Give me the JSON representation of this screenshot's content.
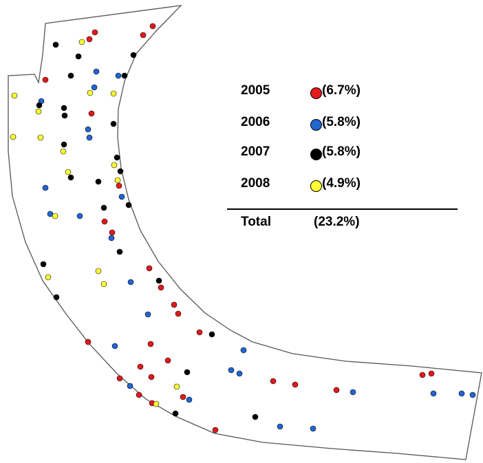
{
  "map": {
    "series": [
      {
        "year": "2005",
        "percent": "(6.7%)",
        "color": "#e41a1c"
      },
      {
        "year": "2006",
        "percent": "(5.8%)",
        "color": "#2166d1"
      },
      {
        "year": "2007",
        "percent": "(5.8%)",
        "color": "#000000"
      },
      {
        "year": "2008",
        "percent": "(4.9%)",
        "color": "#ffff33"
      }
    ],
    "total_label": "Total",
    "total_value": "(23.2%)",
    "boundary_color": "#555555"
  }
}
